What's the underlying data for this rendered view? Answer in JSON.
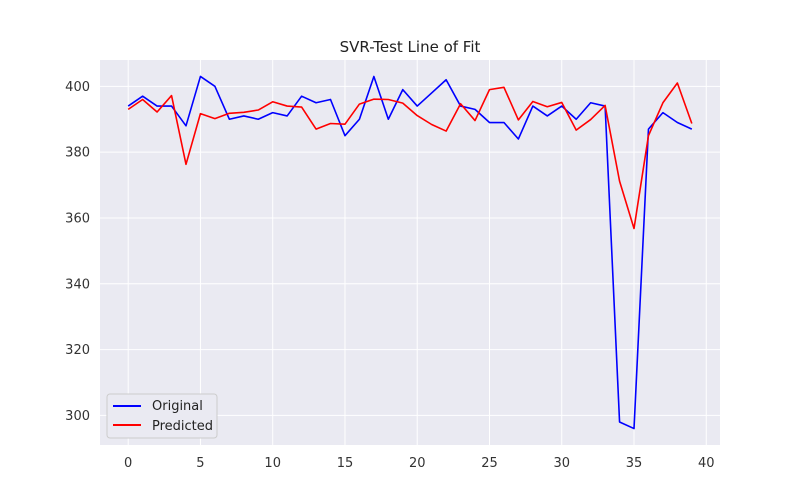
{
  "chart_data": {
    "type": "line",
    "title": "SVR-Test Line of Fit",
    "xlabel": "",
    "ylabel": "",
    "xlim": [
      -1.95,
      40.95
    ],
    "ylim": [
      291,
      408
    ],
    "xticks": [
      0,
      5,
      10,
      15,
      20,
      25,
      30,
      35,
      40
    ],
    "yticks": [
      300,
      320,
      340,
      360,
      380,
      400
    ],
    "grid": true,
    "legend_position": "lower-left",
    "x": [
      0,
      1,
      2,
      3,
      4,
      5,
      6,
      7,
      8,
      9,
      10,
      11,
      12,
      13,
      14,
      15,
      16,
      17,
      18,
      19,
      20,
      21,
      22,
      23,
      24,
      25,
      26,
      27,
      28,
      29,
      30,
      31,
      32,
      33,
      34,
      35,
      36,
      37,
      38,
      39
    ],
    "series": [
      {
        "name": "Original",
        "color": "#0000ff",
        "values": [
          394,
          397,
          394,
          394,
          388,
          403,
          400,
          390,
          391,
          390,
          392,
          391,
          397,
          395,
          396,
          385,
          390,
          403,
          390,
          399,
          394,
          398,
          402,
          394,
          393,
          389,
          389,
          384,
          394,
          391,
          394,
          390,
          395,
          394,
          298,
          296,
          387,
          392,
          389,
          387
        ]
      },
      {
        "name": "Predicted",
        "color": "#ff0000",
        "values": [
          393,
          396,
          392.2,
          397.2,
          376.3,
          391.7,
          390.2,
          391.8,
          392.1,
          392.8,
          395.3,
          394,
          393.7,
          387,
          388.7,
          388.5,
          394.6,
          396.1,
          396,
          394.9,
          391.1,
          388.4,
          386.4,
          394.7,
          389.6,
          399,
          399.7,
          389.8,
          395.4,
          393.8,
          395.1,
          386.7,
          389.9,
          394.2,
          371.2,
          356.8,
          385,
          395,
          401,
          388.7
        ]
      }
    ]
  }
}
